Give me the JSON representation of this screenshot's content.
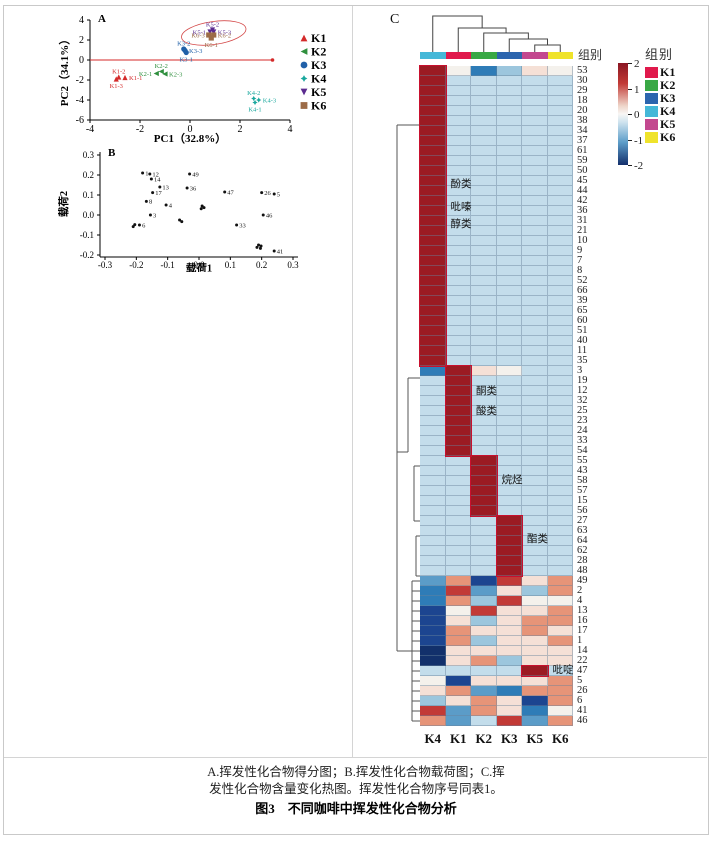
{
  "caption": {
    "line1": "A.挥发性化合物得分图；B.挥发性化合物载荷图；C.挥",
    "line2": "发性化合物含量变化热图。挥发性化合物序号同表1。",
    "title": "图3　不同咖啡中挥发性化合物分析"
  },
  "chart_data": [
    {
      "type": "scatter",
      "panel": "A",
      "xlabel": "PC1（32.8%）",
      "ylabel": "PC2（34.1%）",
      "xlim": [
        -4,
        4
      ],
      "ylim": [
        -6,
        4
      ],
      "xticks": [
        -4,
        -2,
        0,
        2,
        4
      ],
      "yticks": [
        -6,
        -4,
        -2,
        0,
        2,
        4
      ],
      "legend_position": "right",
      "series": [
        {
          "name": "K1",
          "color": "#d42a2a",
          "marker": "triangle-up",
          "points": [
            {
              "x": -2.85,
              "y": -1.7,
              "label": "K1-2",
              "pos": "above"
            },
            {
              "x": -2.6,
              "y": -1.75,
              "label": "K1-1",
              "pos": "right"
            },
            {
              "x": -2.95,
              "y": -1.9,
              "label": "K1-3",
              "pos": "below"
            }
          ]
        },
        {
          "name": "K2",
          "color": "#2f8f3e",
          "marker": "triangle-left",
          "points": [
            {
              "x": -1.15,
              "y": -1.15,
              "label": "K2-2",
              "pos": "above"
            },
            {
              "x": -1.35,
              "y": -1.35,
              "label": "K2-1",
              "pos": "left"
            },
            {
              "x": -1.0,
              "y": -1.4,
              "label": "K2-3",
              "pos": "right"
            }
          ]
        },
        {
          "name": "K3",
          "color": "#2060a8",
          "marker": "circle",
          "points": [
            {
              "x": -0.25,
              "y": 1.1,
              "label": "K3-2",
              "pos": "above"
            },
            {
              "x": -0.2,
              "y": 0.95,
              "label": "K3-3",
              "pos": "right"
            },
            {
              "x": -0.15,
              "y": 0.75,
              "label": "K3-1",
              "pos": "below"
            }
          ]
        },
        {
          "name": "K4",
          "color": "#18a79d",
          "marker": "star",
          "points": [
            {
              "x": 2.55,
              "y": -3.85,
              "label": "K4-2",
              "pos": "above"
            },
            {
              "x": 2.75,
              "y": -4.0,
              "label": "K4-3",
              "pos": "right"
            },
            {
              "x": 2.6,
              "y": -4.25,
              "label": "K4-1",
              "pos": "below"
            }
          ]
        },
        {
          "name": "K5",
          "color": "#5b2b8f",
          "marker": "triangle-down",
          "points": [
            {
              "x": 0.9,
              "y": 3.0,
              "label": "K5-2",
              "pos": "above"
            },
            {
              "x": 0.8,
              "y": 2.8,
              "label": "K5-1",
              "pos": "left"
            },
            {
              "x": 0.95,
              "y": 2.8,
              "label": "K5-3",
              "pos": "right"
            }
          ]
        },
        {
          "name": "K6",
          "color": "#9c6b47",
          "marker": "square",
          "points": [
            {
              "x": 0.75,
              "y": 2.5,
              "label": "K6-3",
              "pos": "left"
            },
            {
              "x": 0.95,
              "y": 2.5,
              "label": "K6-2",
              "pos": "right"
            },
            {
              "x": 0.85,
              "y": 2.2,
              "label": "K6-1",
              "pos": "below"
            }
          ]
        }
      ],
      "ellipse": {
        "cx": 0.95,
        "cy": 2.7,
        "rx": 1.3,
        "ry": 1.15,
        "color": "#d44a4a"
      },
      "zero_line": {
        "y": 0,
        "color": "#d42a2a",
        "end_x": 3.3
      }
    },
    {
      "type": "scatter",
      "panel": "B",
      "xlabel": "载荷1",
      "ylabel": "载荷2",
      "xlim": [
        -0.3,
        0.3
      ],
      "ylim": [
        -0.2,
        0.3
      ],
      "xticks": [
        -0.3,
        -0.2,
        -0.1,
        0.0,
        0.1,
        0.2,
        0.3
      ],
      "yticks": [
        -0.2,
        -0.1,
        0.0,
        0.1,
        0.2,
        0.3
      ],
      "point_color": "#111111",
      "points": [
        {
          "label": "1",
          "x": -0.18,
          "y": 0.21
        },
        {
          "label": "12",
          "x": -0.157,
          "y": 0.205
        },
        {
          "label": "14",
          "x": -0.152,
          "y": 0.18
        },
        {
          "label": "49",
          "x": -0.03,
          "y": 0.205
        },
        {
          "label": "13",
          "x": -0.125,
          "y": 0.14
        },
        {
          "label": "36",
          "x": -0.038,
          "y": 0.135
        },
        {
          "label": "17",
          "x": -0.148,
          "y": 0.112
        },
        {
          "label": "47",
          "x": 0.082,
          "y": 0.115
        },
        {
          "label": "26",
          "x": 0.2,
          "y": 0.112
        },
        {
          "label": "5",
          "x": 0.24,
          "y": 0.105
        },
        {
          "label": "8",
          "x": -0.168,
          "y": 0.068
        },
        {
          "label": "4",
          "x": -0.105,
          "y": 0.05
        },
        {
          "label": "",
          "x": 0.01,
          "y": 0.045
        },
        {
          "label": "",
          "x": 0.016,
          "y": 0.037
        },
        {
          "label": "",
          "x": 0.007,
          "y": 0.031
        },
        {
          "label": "3",
          "x": -0.155,
          "y": 0.0
        },
        {
          "label": "46",
          "x": 0.205,
          "y": 0.0
        },
        {
          "label": "",
          "x": -0.062,
          "y": -0.025
        },
        {
          "label": "",
          "x": -0.055,
          "y": -0.033
        },
        {
          "label": "33",
          "x": 0.12,
          "y": -0.05
        },
        {
          "label": "6",
          "x": -0.19,
          "y": -0.05
        },
        {
          "label": "",
          "x": -0.205,
          "y": -0.048
        },
        {
          "label": "",
          "x": -0.21,
          "y": -0.058
        },
        {
          "label": "",
          "x": 0.19,
          "y": -0.15
        },
        {
          "label": "",
          "x": 0.198,
          "y": -0.155
        },
        {
          "label": "",
          "x": 0.185,
          "y": -0.162
        },
        {
          "label": "",
          "x": 0.196,
          "y": -0.167
        },
        {
          "label": "41",
          "x": 0.24,
          "y": -0.18
        }
      ]
    },
    {
      "type": "heatmap",
      "panel": "C",
      "annotation_title": "组别",
      "legend_title": "组别",
      "columns": [
        "K4",
        "K1",
        "K2",
        "K3",
        "K5",
        "K6"
      ],
      "column_annotation_colors": [
        "#45b8d8",
        "#e0194c",
        "#39a845",
        "#2c65ae",
        "#c3488f",
        "#efe32b"
      ],
      "legend_groups": [
        {
          "name": "K1",
          "color": "#e0194c"
        },
        {
          "name": "K2",
          "color": "#39a845"
        },
        {
          "name": "K3",
          "color": "#2c65ae"
        },
        {
          "name": "K4",
          "color": "#45b8d8"
        },
        {
          "name": "K5",
          "color": "#c3488f"
        },
        {
          "name": "K6",
          "color": "#efe32b"
        }
      ],
      "colorbar_ticks": [
        2,
        1,
        0,
        -1,
        -2
      ],
      "rows": [
        "53",
        "30",
        "29",
        "18",
        "20",
        "38",
        "34",
        "37",
        "61",
        "59",
        "50",
        "45",
        "44",
        "42",
        "36",
        "31",
        "21",
        "10",
        "9",
        "7",
        "8",
        "52",
        "66",
        "39",
        "65",
        "60",
        "51",
        "40",
        "11",
        "35",
        "3",
        "19",
        "12",
        "32",
        "25",
        "23",
        "24",
        "33",
        "54",
        "55",
        "43",
        "58",
        "57",
        "15",
        "56",
        "27",
        "63",
        "64",
        "62",
        "28",
        "48",
        "49",
        "2",
        "4",
        "13",
        "16",
        "17",
        "1",
        "14",
        "22",
        "47",
        "5",
        "26",
        "6",
        "41",
        "46"
      ],
      "palette": {
        "R": "#9b1b23",
        "r": "#c23a36",
        "s": "#e69478",
        "p": "#f5e0d6",
        "w": "#f4f1ec",
        "b": "#c3ddeb",
        "l": "#9cc6dd",
        "m": "#5b9cc8",
        "B": "#2e7cb7",
        "N": "#1c4590",
        "D": "#12306b"
      },
      "cells": [
        "RwBlpw",
        "Rbbbbb",
        "Rbbbbb",
        "Rbbbbb",
        "Rbbbbb",
        "Rbbbbb",
        "Rbbbbb",
        "Rbbbbb",
        "Rbbbbb",
        "Rbbbbb",
        "Rbbbbb",
        "Rbbbbb",
        "Rbbbbb",
        "Rbbbbb",
        "Rbbbbb",
        "Rbbbbb",
        "Rbbbbb",
        "Rbbbbb",
        "Rbbbbb",
        "Rbbbbb",
        "Rbbbbb",
        "Rbbbbb",
        "Rbbbbb",
        "Rbbbbb",
        "Rbbbbb",
        "Rbbbbb",
        "Rbbbbb",
        "Rbbbbb",
        "Rbbbbb",
        "Rbbbbb",
        "BRpwbb",
        "bRbbbb",
        "bRbbbb",
        "bRbbbb",
        "bRbbbb",
        "bRbbbb",
        "bRbbbb",
        "bRbbbb",
        "bRbbbb",
        "bbRbbb",
        "bbRbbb",
        "bbRbbb",
        "bbRbbb",
        "bbRbbb",
        "bbRbbb",
        "bbbRbb",
        "bbbRbb",
        "bbbRbb",
        "bbbRbb",
        "bbbRbb",
        "bbbRbb",
        "msNrps",
        "Brmpls",
        "Bslrww",
        "Nwrpps",
        "Nplpss",
        "Nsppsp",
        "Nslpps",
        "Dppppp",
        "Dpslpp",
        "bbbbRb",
        "wNppps",
        "psmBss",
        "lpspNs",
        "rmspBw",
        "smbrms"
      ],
      "cluster_blocks": [
        {
          "col": 0,
          "row_start": 0,
          "row_end": 29
        },
        {
          "col": 1,
          "row_start": 30,
          "row_end": 38
        },
        {
          "col": 2,
          "row_start": 39,
          "row_end": 44
        },
        {
          "col": 3,
          "row_start": 45,
          "row_end": 50
        },
        {
          "col": 4,
          "row_start": 60,
          "row_end": 60
        }
      ],
      "class_labels": [
        {
          "text": "酚类",
          "col": 1,
          "row": 11.4
        },
        {
          "text": "吡嗪",
          "col": 1,
          "row": 13.7
        },
        {
          "text": "醇类",
          "col": 1,
          "row": 15.4
        },
        {
          "text": "酮类",
          "col": 2,
          "row": 32.1
        },
        {
          "text": "酸类",
          "col": 2,
          "row": 34.1
        },
        {
          "text": "烷烃",
          "col": 3,
          "row": 41.0
        },
        {
          "text": "酯类",
          "col": 4,
          "row": 46.9
        },
        {
          "text": "吡啶",
          "col": 5,
          "row": 60.0
        }
      ]
    }
  ]
}
